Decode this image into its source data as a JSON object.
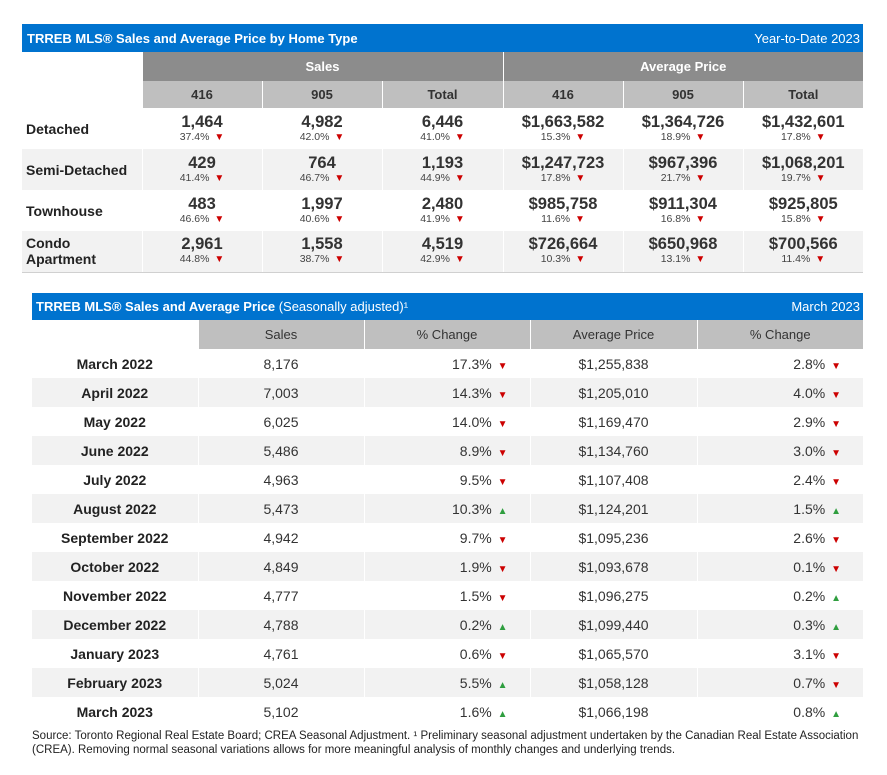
{
  "colors": {
    "title_bar": "#0073cf",
    "header_dark": "#8c8c8c",
    "header_light": "#bfbfbf",
    "down_arrow": "#cc0000",
    "up_arrow": "#2f9e3f"
  },
  "icons": {
    "down": "down-triangle-icon",
    "up": "up-triangle-icon"
  },
  "table1": {
    "title": "TRREB MLS® Sales and Average Price by Home Type",
    "period": "Year-to-Date 2023",
    "group_headers": [
      "Sales",
      "Average Price"
    ],
    "sub_headers": [
      "416",
      "905",
      "Total",
      "416",
      "905",
      "Total"
    ],
    "rows": [
      {
        "label": "Detached",
        "cells": [
          {
            "value": "1,464",
            "pct": "37.4%",
            "dir": "down"
          },
          {
            "value": "4,982",
            "pct": "42.0%",
            "dir": "down"
          },
          {
            "value": "6,446",
            "pct": "41.0%",
            "dir": "down"
          },
          {
            "value": "$1,663,582",
            "pct": "15.3%",
            "dir": "down"
          },
          {
            "value": "$1,364,726",
            "pct": "18.9%",
            "dir": "down"
          },
          {
            "value": "$1,432,601",
            "pct": "17.8%",
            "dir": "down"
          }
        ]
      },
      {
        "label": "Semi-Detached",
        "cells": [
          {
            "value": "429",
            "pct": "41.4%",
            "dir": "down"
          },
          {
            "value": "764",
            "pct": "46.7%",
            "dir": "down"
          },
          {
            "value": "1,193",
            "pct": "44.9%",
            "dir": "down"
          },
          {
            "value": "$1,247,723",
            "pct": "17.8%",
            "dir": "down"
          },
          {
            "value": "$967,396",
            "pct": "21.7%",
            "dir": "down"
          },
          {
            "value": "$1,068,201",
            "pct": "19.7%",
            "dir": "down"
          }
        ]
      },
      {
        "label": "Townhouse",
        "cells": [
          {
            "value": "483",
            "pct": "46.6%",
            "dir": "down"
          },
          {
            "value": "1,997",
            "pct": "40.6%",
            "dir": "down"
          },
          {
            "value": "2,480",
            "pct": "41.9%",
            "dir": "down"
          },
          {
            "value": "$985,758",
            "pct": "11.6%",
            "dir": "down"
          },
          {
            "value": "$911,304",
            "pct": "16.8%",
            "dir": "down"
          },
          {
            "value": "$925,805",
            "pct": "15.8%",
            "dir": "down"
          }
        ]
      },
      {
        "label": "Condo Apartment",
        "cells": [
          {
            "value": "2,961",
            "pct": "44.8%",
            "dir": "down"
          },
          {
            "value": "1,558",
            "pct": "38.7%",
            "dir": "down"
          },
          {
            "value": "4,519",
            "pct": "42.9%",
            "dir": "down"
          },
          {
            "value": "$726,664",
            "pct": "10.3%",
            "dir": "down"
          },
          {
            "value": "$650,968",
            "pct": "13.1%",
            "dir": "down"
          },
          {
            "value": "$700,566",
            "pct": "11.4%",
            "dir": "down"
          }
        ]
      }
    ]
  },
  "table2": {
    "title_bold": "TRREB MLS® Sales and Average Price",
    "title_rest": " (Seasonally adjusted)¹",
    "period": "March 2023",
    "headers": [
      "Sales",
      "% Change",
      "Average Price",
      "% Change"
    ],
    "rows": [
      {
        "month": "March 2022",
        "sales": "8,176",
        "sales_chg": "17.3%",
        "sales_dir": "down",
        "price": "$1,255,838",
        "price_chg": "2.8%",
        "price_dir": "down"
      },
      {
        "month": "April 2022",
        "sales": "7,003",
        "sales_chg": "14.3%",
        "sales_dir": "down",
        "price": "$1,205,010",
        "price_chg": "4.0%",
        "price_dir": "down"
      },
      {
        "month": "May 2022",
        "sales": "6,025",
        "sales_chg": "14.0%",
        "sales_dir": "down",
        "price": "$1,169,470",
        "price_chg": "2.9%",
        "price_dir": "down"
      },
      {
        "month": "June 2022",
        "sales": "5,486",
        "sales_chg": "8.9%",
        "sales_dir": "down",
        "price": "$1,134,760",
        "price_chg": "3.0%",
        "price_dir": "down"
      },
      {
        "month": "July 2022",
        "sales": "4,963",
        "sales_chg": "9.5%",
        "sales_dir": "down",
        "price": "$1,107,408",
        "price_chg": "2.4%",
        "price_dir": "down"
      },
      {
        "month": "August 2022",
        "sales": "5,473",
        "sales_chg": "10.3%",
        "sales_dir": "up",
        "price": "$1,124,201",
        "price_chg": "1.5%",
        "price_dir": "up"
      },
      {
        "month": "September 2022",
        "sales": "4,942",
        "sales_chg": "9.7%",
        "sales_dir": "down",
        "price": "$1,095,236",
        "price_chg": "2.6%",
        "price_dir": "down"
      },
      {
        "month": "October 2022",
        "sales": "4,849",
        "sales_chg": "1.9%",
        "sales_dir": "down",
        "price": "$1,093,678",
        "price_chg": "0.1%",
        "price_dir": "down"
      },
      {
        "month": "November 2022",
        "sales": "4,777",
        "sales_chg": "1.5%",
        "sales_dir": "down",
        "price": "$1,096,275",
        "price_chg": "0.2%",
        "price_dir": "up"
      },
      {
        "month": "December 2022",
        "sales": "4,788",
        "sales_chg": "0.2%",
        "sales_dir": "up",
        "price": "$1,099,440",
        "price_chg": "0.3%",
        "price_dir": "up"
      },
      {
        "month": "January 2023",
        "sales": "4,761",
        "sales_chg": "0.6%",
        "sales_dir": "down",
        "price": "$1,065,570",
        "price_chg": "3.1%",
        "price_dir": "down"
      },
      {
        "month": "February 2023",
        "sales": "5,024",
        "sales_chg": "5.5%",
        "sales_dir": "up",
        "price": "$1,058,128",
        "price_chg": "0.7%",
        "price_dir": "down"
      },
      {
        "month": "March 2023",
        "sales": "5,102",
        "sales_chg": "1.6%",
        "sales_dir": "up",
        "price": "$1,066,198",
        "price_chg": "0.8%",
        "price_dir": "up"
      }
    ]
  },
  "source_note": "Source: Toronto Regional Real Estate Board; CREA Seasonal Adjustment. ¹ Preliminary seasonal adjustment undertaken by the Canadian Real Estate Association (CREA).  Removing normal seasonal variations allows for more meaningful analysis of monthly changes and underlying trends."
}
